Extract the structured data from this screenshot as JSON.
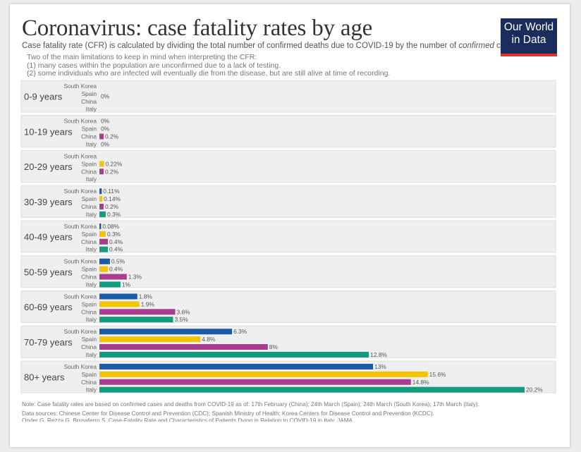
{
  "header": {
    "title": "Coronavirus: case fatality rates by age",
    "subtitle_pre": "Case fatality rate (CFR) is calculated by dividing the total number of confirmed deaths due to COVID-19 by the number of ",
    "subtitle_em": "confirmed",
    "subtitle_post": " cases.",
    "notes": [
      "Two of the main limitations to keep in mind when interpreting the CFR:",
      "(1) many cases within the population are unconfirmed due to a lack of testing.",
      "(2) some individuals who are infected will eventually die from the disease, but are still alive at time of recording."
    ]
  },
  "logo": {
    "line1": "Our World",
    "line2": "in Data"
  },
  "footer": {
    "note": "Note: Case fatality rates are based on confirmed cases and deaths from COVID-19 as of: 17th February (China); 24th March (Spain); 24th March (South Korea); 17th March (Italy).",
    "sources": "Data sources: Chinese Center for Disease Control and Prevention (CDC); Spanish Ministry of Health; Korea Centers for Disease Control and Prevention (KCDC).",
    "cut": "Onder G, Rezza G, Brusaferro S. Case-Fatality Rate and Characteristics of Patients Dying in Relation to COVID-19 in Italy. JAMA."
  },
  "chart_data": {
    "type": "bar",
    "orientation": "horizontal",
    "title": "Coronavirus: case fatality rates by age",
    "countries": [
      "South Korea",
      "Spain",
      "China",
      "Italy"
    ],
    "colors": {
      "South Korea": "#1b5aa6",
      "Spain": "#f5c400",
      "China": "#a83c8e",
      "Italy": "#129b7e"
    },
    "xlim": [
      0,
      20.2
    ],
    "groups": [
      {
        "age": "0-9 years",
        "values": [
          null,
          null,
          null,
          null
        ],
        "group_label": "0%"
      },
      {
        "age": "10-19 years",
        "values": [
          0,
          0,
          0.2,
          0
        ],
        "labels": [
          "0%",
          "0%",
          "0.2%",
          "0%"
        ]
      },
      {
        "age": "20-29 years",
        "values": [
          null,
          0.22,
          0.2,
          null
        ],
        "labels": [
          "",
          "0.22%",
          "0.2%",
          ""
        ]
      },
      {
        "age": "30-39 years",
        "values": [
          0.11,
          0.14,
          0.2,
          0.3
        ],
        "labels": [
          "0.11%",
          "0.14%",
          "0.2%",
          "0.3%"
        ]
      },
      {
        "age": "40-49 years",
        "values": [
          0.08,
          0.3,
          0.4,
          0.4
        ],
        "labels": [
          "0.08%",
          "0.3%",
          "0.4%",
          "0.4%"
        ]
      },
      {
        "age": "50-59 years",
        "values": [
          0.5,
          0.4,
          1.3,
          1
        ],
        "labels": [
          "0.5%",
          "0.4%",
          "1.3%",
          "1%"
        ]
      },
      {
        "age": "60-69 years",
        "values": [
          1.8,
          1.9,
          3.6,
          3.5
        ],
        "labels": [
          "1.8%",
          "1.9%",
          "3.6%",
          "3.5%"
        ]
      },
      {
        "age": "70-79 years",
        "values": [
          6.3,
          4.8,
          8,
          12.8
        ],
        "labels": [
          "6.3%",
          "4.8%",
          "8%",
          "12.8%"
        ]
      },
      {
        "age": "80+ years",
        "values": [
          13,
          15.6,
          14.8,
          20.2
        ],
        "labels": [
          "13%",
          "15.6%",
          "14.8%",
          "20.2%"
        ]
      }
    ]
  }
}
